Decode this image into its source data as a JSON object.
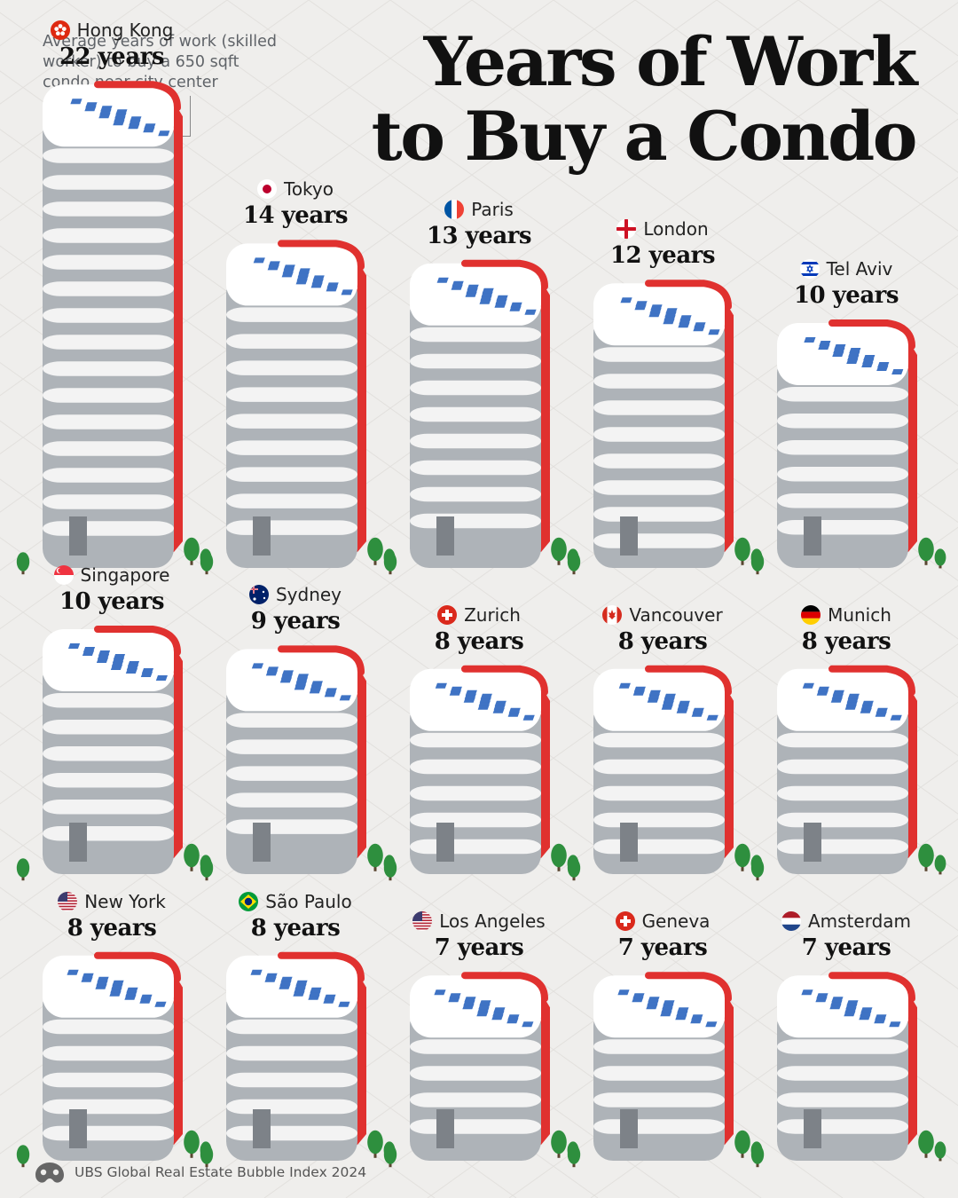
{
  "header": {
    "subtitle": "Average years of work (skilled\nworker) to buy a 650 sqft\ncondo near city center",
    "title": "Years of Work\nto Buy a Condo"
  },
  "footer": {
    "source": "UBS Global Real Estate Bubble Index 2024",
    "logo_icon": "visual-capitalist-logo-icon"
  },
  "colors": {
    "building_face_light": "#f3f3f3",
    "building_face_shade": "#aeb3b8",
    "building_side_red": "#e0312f",
    "window_blue": "#3f73c4",
    "door_gray": "#7d8288",
    "tree_green": "#2e8f3e"
  },
  "chart_data": {
    "type": "bar",
    "title": "Years of Work to Buy a Condo",
    "unit": "years",
    "categories": [
      "Hong Kong",
      "Tokyo",
      "Paris",
      "London",
      "Tel Aviv",
      "Singapore",
      "Sydney",
      "Zurich",
      "Vancouver",
      "Munich",
      "New York",
      "São Paulo",
      "Los Angeles",
      "Geneva",
      "Amsterdam"
    ],
    "values": [
      22,
      14,
      13,
      12,
      10,
      10,
      9,
      8,
      8,
      8,
      8,
      8,
      7,
      7,
      7
    ],
    "value_labels": [
      "22 years",
      "14 years",
      "13 years",
      "12 years",
      "10 years",
      "10 years",
      "9 years",
      "8 years",
      "8 years",
      "8 years",
      "8 years",
      "8 years",
      "7 years",
      "7 years",
      "7 years"
    ],
    "flag_icons": [
      "hong-kong-flag-icon",
      "japan-flag-icon",
      "france-flag-icon",
      "england-flag-icon",
      "israel-flag-icon",
      "singapore-flag-icon",
      "australia-flag-icon",
      "switzerland-flag-icon",
      "canada-flag-icon",
      "germany-flag-icon",
      "usa-flag-icon",
      "brazil-flag-icon",
      "usa-flag-icon",
      "switzerland-flag-icon",
      "netherlands-flag-icon"
    ]
  }
}
